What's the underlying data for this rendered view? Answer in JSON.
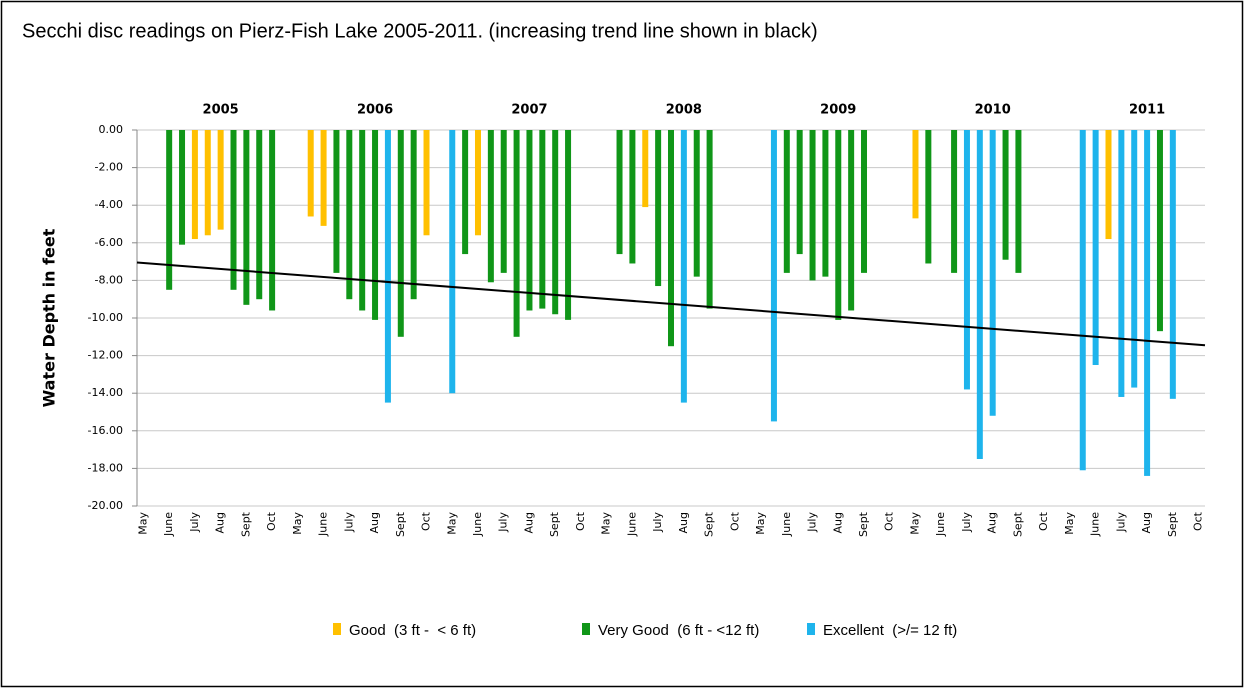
{
  "chart_data": {
    "type": "bar",
    "title": "Secchi disc readings on Pierz-Fish Lake 2005-2011. (increasing trend line shown in black)",
    "y_label": "Water Depth in feet",
    "year_labels": [
      "2005",
      "2006",
      "2007",
      "2008",
      "2009",
      "2010",
      "2011"
    ],
    "categories": [
      "May",
      null,
      "June",
      null,
      "July",
      null,
      "Aug",
      null,
      "Sept",
      null,
      "Oct",
      null,
      "May",
      null,
      "June",
      null,
      "July",
      null,
      "Aug",
      null,
      "Sept",
      null,
      "Oct",
      null,
      "May",
      null,
      "June",
      null,
      "July",
      null,
      "Aug",
      null,
      "Sept",
      null,
      "Oct",
      null,
      "May",
      null,
      "June",
      null,
      "July",
      null,
      "Aug",
      null,
      "Sept",
      null,
      "Oct",
      null,
      "May",
      null,
      "June",
      null,
      "July",
      null,
      "Aug",
      null,
      "Sept",
      null,
      "Oct",
      null,
      "May",
      null,
      "June",
      null,
      "July",
      null,
      "Aug",
      null,
      "Sept",
      null,
      "Oct",
      null,
      "May",
      null,
      "June",
      null,
      "July",
      null,
      "Aug",
      null,
      "Sept",
      null,
      "Oct"
    ],
    "series": [
      {
        "name": "Good  (3 ft -  < 6 ft)",
        "color": "#ffc000",
        "values": [
          null,
          null,
          null,
          null,
          -5.8,
          -5.6,
          -5.3,
          null,
          null,
          null,
          null,
          null,
          null,
          -4.6,
          -5.1,
          null,
          null,
          null,
          null,
          null,
          null,
          null,
          -5.6,
          null,
          null,
          null,
          -5.6,
          null,
          null,
          null,
          null,
          null,
          null,
          null,
          null,
          null,
          null,
          null,
          null,
          -4.1,
          null,
          null,
          null,
          null,
          null,
          null,
          null,
          null,
          null,
          null,
          null,
          null,
          null,
          null,
          null,
          null,
          null,
          null,
          null,
          null,
          -4.7,
          null,
          null,
          null,
          null,
          null,
          null,
          null,
          null,
          null,
          null,
          null,
          null,
          null,
          null,
          -5.8,
          null,
          null,
          null,
          null,
          null,
          null,
          null
        ]
      },
      {
        "name": "Very Good  (6 ft - <12 ft)",
        "color": "#109618",
        "values": [
          null,
          null,
          -8.5,
          -6.1,
          null,
          null,
          null,
          -8.5,
          -9.3,
          -9.0,
          -9.6,
          null,
          null,
          null,
          null,
          -7.6,
          -9.0,
          -9.6,
          -10.1,
          null,
          -11.0,
          -9.0,
          null,
          null,
          null,
          -6.6,
          null,
          -8.1,
          -7.6,
          -11.0,
          -9.6,
          -9.5,
          -9.8,
          -10.1,
          null,
          null,
          null,
          -6.6,
          -7.1,
          null,
          -8.3,
          -11.5,
          null,
          -7.8,
          -9.5,
          null,
          null,
          null,
          null,
          null,
          -7.6,
          -6.6,
          -8.0,
          -7.8,
          -10.1,
          -9.6,
          -7.6,
          null,
          null,
          null,
          null,
          -7.1,
          null,
          -7.6,
          null,
          null,
          null,
          -6.9,
          -7.6,
          null,
          null,
          null,
          null,
          null,
          null,
          null,
          null,
          null,
          null,
          -10.7,
          null,
          null,
          null
        ]
      },
      {
        "name": "Excellent  (>/= 12 ft)",
        "color": "#1eb4ec",
        "values": [
          null,
          null,
          null,
          null,
          null,
          null,
          null,
          null,
          null,
          null,
          null,
          null,
          null,
          null,
          null,
          null,
          null,
          null,
          null,
          -14.5,
          null,
          null,
          null,
          null,
          -14.0,
          null,
          null,
          null,
          null,
          null,
          null,
          null,
          null,
          null,
          null,
          null,
          null,
          null,
          null,
          null,
          null,
          null,
          -14.5,
          null,
          null,
          null,
          null,
          null,
          null,
          -15.5,
          null,
          null,
          null,
          null,
          null,
          null,
          null,
          null,
          null,
          null,
          null,
          null,
          null,
          null,
          -13.8,
          -17.5,
          -15.2,
          null,
          null,
          null,
          null,
          null,
          null,
          -18.1,
          -12.5,
          null,
          -14.2,
          -13.7,
          -18.4,
          null,
          -14.3,
          null,
          null
        ]
      }
    ],
    "trend_line": [
      -7.05,
      -11.45
    ],
    "trend_color": "#000000",
    "ylim": [
      -20,
      0
    ],
    "yticks": [
      {
        "value": -20,
        "label": "-20.00"
      },
      {
        "value": -18,
        "label": "-18.00"
      },
      {
        "value": -16,
        "label": "-16.00"
      },
      {
        "value": -14,
        "label": "-14.00"
      },
      {
        "value": -12,
        "label": "-12.00"
      },
      {
        "value": -10,
        "label": "-10.00"
      },
      {
        "value": -8,
        "label": "-8.00"
      },
      {
        "value": -6,
        "label": "-6.00"
      },
      {
        "value": -4,
        "label": "-4.00"
      },
      {
        "value": -2,
        "label": "-2.00"
      },
      {
        "value": 0,
        "label": "0.00"
      }
    ],
    "grid": true
  }
}
